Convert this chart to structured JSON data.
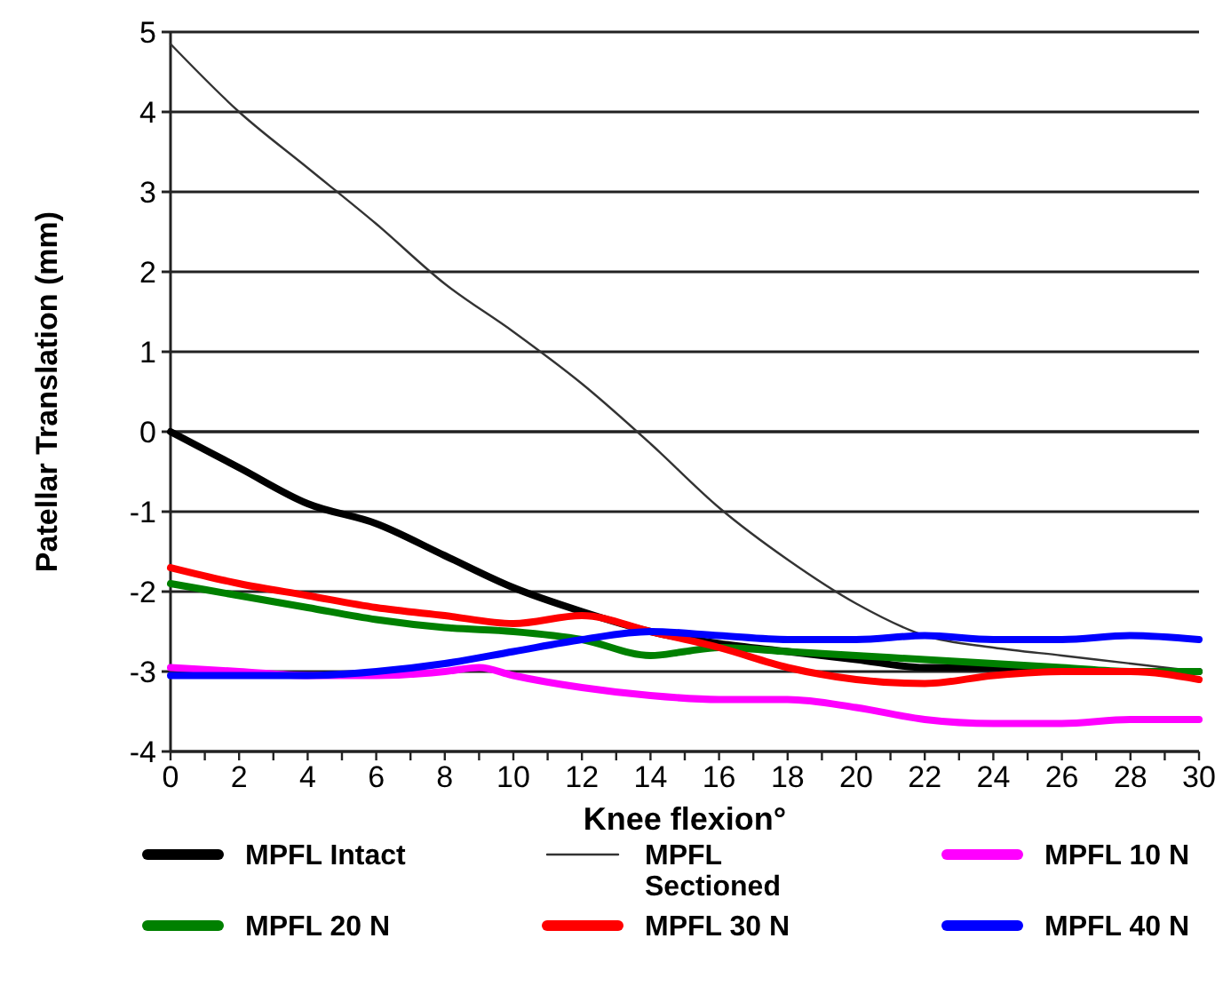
{
  "chart_data": {
    "type": "line",
    "xlabel": "Knee flexion°",
    "ylabel": "Patellar Translation (mm)",
    "x": [
      0,
      2,
      4,
      6,
      8,
      10,
      12,
      14,
      16,
      18,
      20,
      22,
      24,
      26,
      28,
      30
    ],
    "xlim": [
      0,
      30
    ],
    "xticks": [
      0,
      {
        "value": 1,
        "label": null
      },
      2,
      {
        "value": 3,
        "label": null
      },
      4,
      {
        "value": 5,
        "label": null
      },
      6,
      {
        "value": 7,
        "label": null
      },
      8,
      {
        "value": 9,
        "label": null
      },
      10,
      {
        "value": 11,
        "label": null
      },
      12,
      {
        "value": 13,
        "label": null
      },
      14,
      {
        "value": 15,
        "label": null
      },
      16,
      {
        "value": 17,
        "label": null
      },
      18,
      {
        "value": 19,
        "label": null
      },
      20,
      {
        "value": 21,
        "label": null
      },
      22,
      {
        "value": 23,
        "label": null
      },
      24,
      {
        "value": 25,
        "label": null
      },
      26,
      {
        "value": 27,
        "label": null
      },
      28,
      {
        "value": 29,
        "label": null
      },
      30
    ],
    "ylim": [
      -4,
      5
    ],
    "yticks": [
      -4,
      -3,
      -2,
      -1,
      0,
      1,
      2,
      3,
      4,
      5
    ],
    "grid": "y",
    "legend": "bottom",
    "marker": "none",
    "line_style": "solid",
    "series": [
      {
        "name": "MPFL Intact",
        "color": "#000000",
        "values": [
          0,
          -0.45,
          -0.9,
          -1.15,
          -1.55,
          -1.95,
          -2.25,
          -2.5,
          -2.65,
          -2.75,
          -2.85,
          -2.95,
          -2.95,
          -3.0,
          -3.0,
          -3.0
        ]
      },
      {
        "name": "MPFL Sectioned",
        "color": "#333333",
        "values": [
          4.85,
          4.0,
          3.3,
          2.6,
          1.85,
          1.25,
          0.6,
          -0.15,
          -0.95,
          -1.6,
          -2.15,
          -2.55,
          -2.7,
          -2.8,
          -2.9,
          -3.0
        ]
      },
      {
        "name": "MPFL 10 N",
        "color": "#ff00ff",
        "x": [
          0,
          2,
          4,
          6,
          8,
          9,
          10,
          12,
          14,
          16,
          18,
          20,
          22,
          24,
          26,
          28,
          30
        ],
        "values": [
          -2.95,
          -3.0,
          -3.05,
          -3.05,
          -3.0,
          -2.95,
          -3.05,
          -3.2,
          -3.3,
          -3.35,
          -3.35,
          -3.45,
          -3.6,
          -3.65,
          -3.65,
          -3.6,
          -3.6
        ]
      },
      {
        "name": "MPFL 20 N",
        "color": "#008000",
        "x": [
          0,
          2,
          4,
          6,
          8,
          10,
          12,
          14,
          15,
          16,
          18,
          20,
          22,
          24,
          26,
          28,
          30
        ],
        "values": [
          -1.9,
          -2.05,
          -2.2,
          -2.35,
          -2.45,
          -2.5,
          -2.6,
          -2.8,
          -2.75,
          -2.7,
          -2.75,
          -2.8,
          -2.85,
          -2.9,
          -2.95,
          -3.0,
          -3.0
        ]
      },
      {
        "name": "MPFL 30 N",
        "color": "#ff0000",
        "values": [
          -1.7,
          -1.9,
          -2.05,
          -2.2,
          -2.3,
          -2.4,
          -2.3,
          -2.5,
          -2.7,
          -2.95,
          -3.1,
          -3.15,
          -3.05,
          -3.0,
          -3.0,
          -3.1
        ]
      },
      {
        "name": "MPFL 40 N",
        "color": "#0000ff",
        "values": [
          -3.05,
          -3.05,
          -3.05,
          -3.0,
          -2.9,
          -2.75,
          -2.6,
          -2.5,
          -2.55,
          -2.6,
          -2.6,
          -2.55,
          -2.6,
          -2.6,
          -2.55,
          -2.6
        ]
      }
    ]
  }
}
